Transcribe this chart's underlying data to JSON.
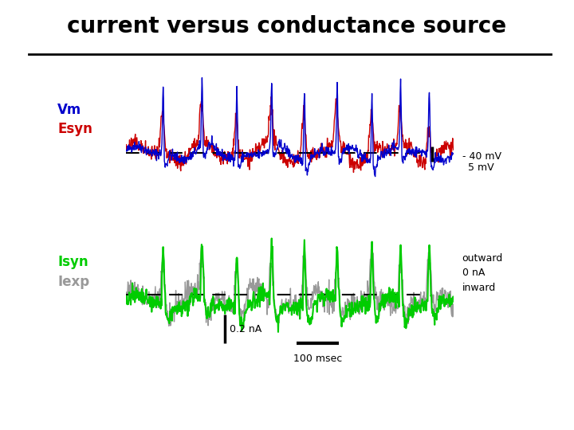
{
  "title": "current versus conductance source",
  "title_fontsize": 20,
  "background_color": "#ffffff",
  "vm_color": "#0000cc",
  "esyn_color": "#cc0000",
  "isyn_color": "#00cc00",
  "iexp_color": "#999999",
  "label_vm": "Vm",
  "label_esyn": "Esyn",
  "label_isyn": "Isyn",
  "label_iexp": "Iexp",
  "annotation_40mv": "- 40 mV",
  "annotation_5mv": "5 mV",
  "annotation_0na": "0 nA",
  "annotation_outward": "outward",
  "annotation_inward": "inward",
  "annotation_02na": "0.2 nA",
  "annotation_100msec": "100 msec",
  "seed": 42,
  "n_points": 800
}
